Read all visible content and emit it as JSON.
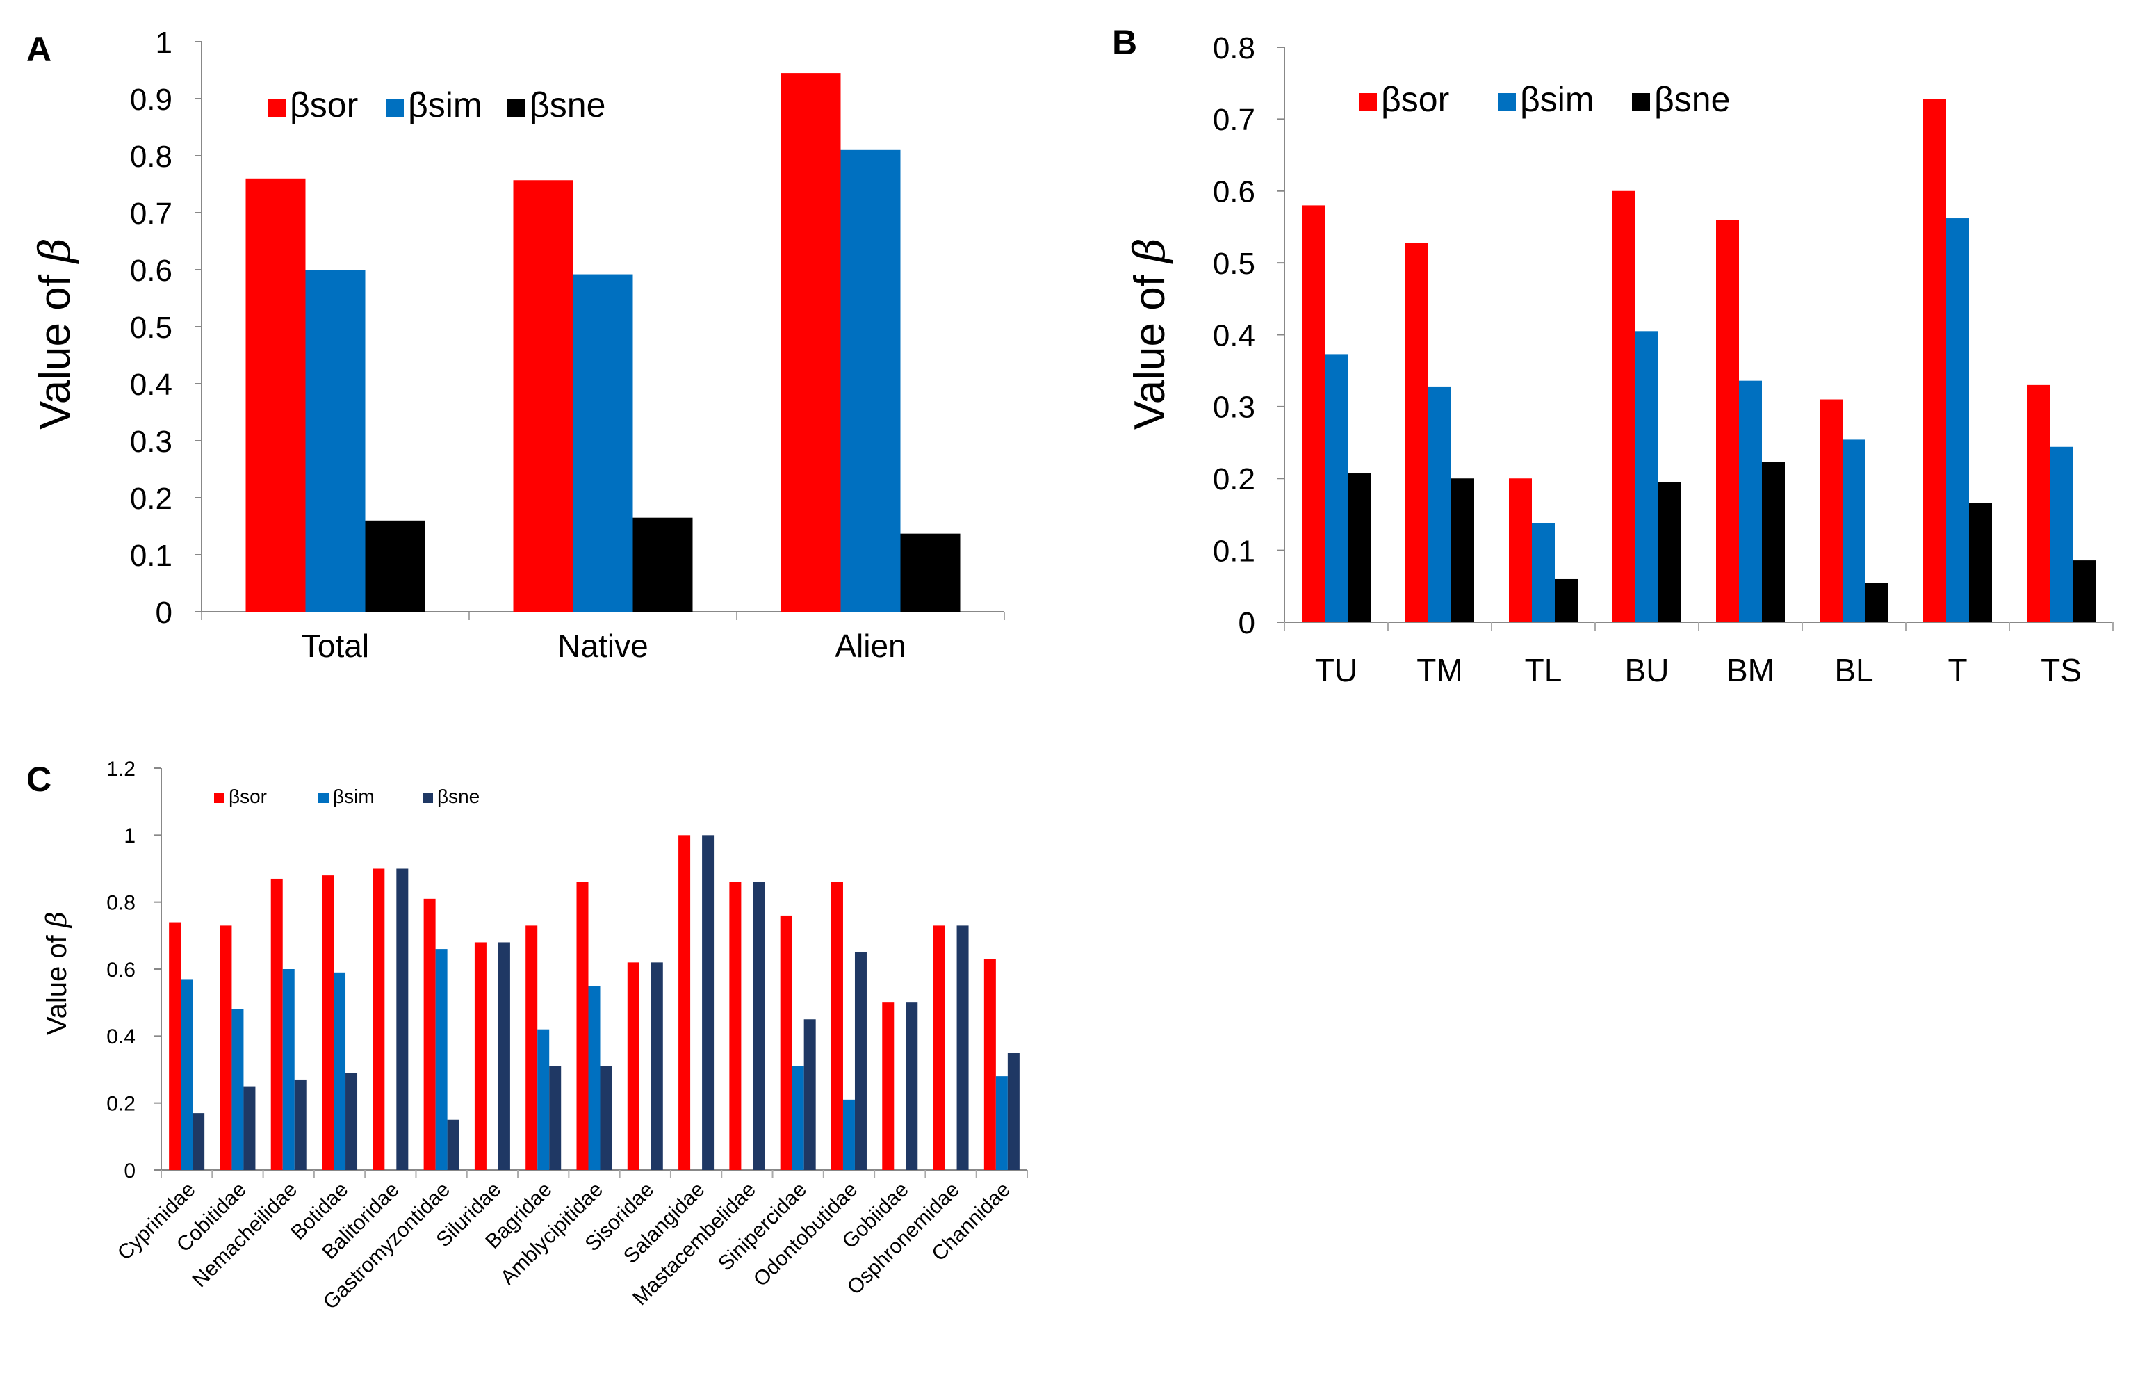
{
  "chart_data": [
    {
      "panel": "A",
      "type": "bar",
      "ylabel_text": "Value of ",
      "ylabel_symbol": "β",
      "ylim": [
        0,
        1
      ],
      "yticks": [
        "0",
        "0.1",
        "0.2",
        "0.3",
        "0.4",
        "0.5",
        "0.6",
        "0.7",
        "0.8",
        "0.9",
        "1"
      ],
      "categories": [
        "Total",
        "Native",
        "Alien"
      ],
      "legend_position": "top-left",
      "series": [
        {
          "name": "βsor",
          "color": "#ff0000",
          "values": [
            0.76,
            0.757,
            0.945
          ]
        },
        {
          "name": "βsim",
          "color": "#0070c0",
          "values": [
            0.6,
            0.592,
            0.81
          ]
        },
        {
          "name": "βsne",
          "color": "#000000",
          "values": [
            0.16,
            0.165,
            0.137
          ]
        }
      ]
    },
    {
      "panel": "B",
      "type": "bar",
      "ylabel_text": "Value of ",
      "ylabel_symbol": "β",
      "ylim": [
        0,
        0.8
      ],
      "yticks": [
        "0",
        "0.1",
        "0.2",
        "0.3",
        "0.4",
        "0.5",
        "0.6",
        "0.7",
        "0.8"
      ],
      "categories": [
        "TU",
        "TM",
        "TL",
        "BU",
        "BM",
        "BL",
        "T",
        "TS"
      ],
      "legend_position": "top-left",
      "series": [
        {
          "name": "βsor",
          "color": "#ff0000",
          "values": [
            0.58,
            0.528,
            0.2,
            0.6,
            0.56,
            0.31,
            0.728,
            0.33
          ]
        },
        {
          "name": "βsim",
          "color": "#0070c0",
          "values": [
            0.373,
            0.328,
            0.138,
            0.405,
            0.336,
            0.254,
            0.562,
            0.244
          ]
        },
        {
          "name": "βsne",
          "color": "#000000",
          "values": [
            0.207,
            0.2,
            0.06,
            0.195,
            0.223,
            0.055,
            0.166,
            0.086
          ]
        }
      ]
    },
    {
      "panel": "C",
      "type": "bar",
      "ylabel_text": "Value of ",
      "ylabel_symbol": "β",
      "ylim": [
        0,
        1.2
      ],
      "yticks": [
        "0",
        "0.2",
        "0.4",
        "0.6",
        "0.8",
        "1",
        "1.2"
      ],
      "categories": [
        "Cyprinidae",
        "Cobitidae",
        "Nemacheilidae",
        "Botidae",
        "Balitoridae",
        "Gastromyzontidae",
        "Siluridae",
        "Bagridae",
        "Amblycipitidae",
        "Sisoridae",
        "Salangidae",
        "Mastacembelidae",
        "Sinipercidae",
        "Odontobutidae",
        "Gobiidae",
        "Osphronemidae",
        "Channidae"
      ],
      "legend_position": "top-left",
      "series": [
        {
          "name": "βsor",
          "color": "#ff0000",
          "values": [
            0.74,
            0.73,
            0.87,
            0.88,
            0.9,
            0.81,
            0.68,
            0.73,
            0.86,
            0.62,
            1.0,
            0.86,
            0.76,
            0.86,
            0.5,
            0.73,
            0.63
          ]
        },
        {
          "name": "βsim",
          "color": "#0070c0",
          "values": [
            0.57,
            0.48,
            0.6,
            0.59,
            0.0,
            0.66,
            0.0,
            0.42,
            0.55,
            0.0,
            0.0,
            0.0,
            0.31,
            0.21,
            0.0,
            0.0,
            0.28
          ]
        },
        {
          "name": "βsne",
          "color": "#1f3864",
          "values": [
            0.17,
            0.25,
            0.27,
            0.29,
            0.9,
            0.15,
            0.68,
            0.31,
            0.31,
            0.62,
            1.0,
            0.86,
            0.45,
            0.65,
            0.5,
            0.73,
            0.35
          ]
        }
      ]
    }
  ],
  "panel_labels": [
    "A",
    "B",
    "C"
  ]
}
